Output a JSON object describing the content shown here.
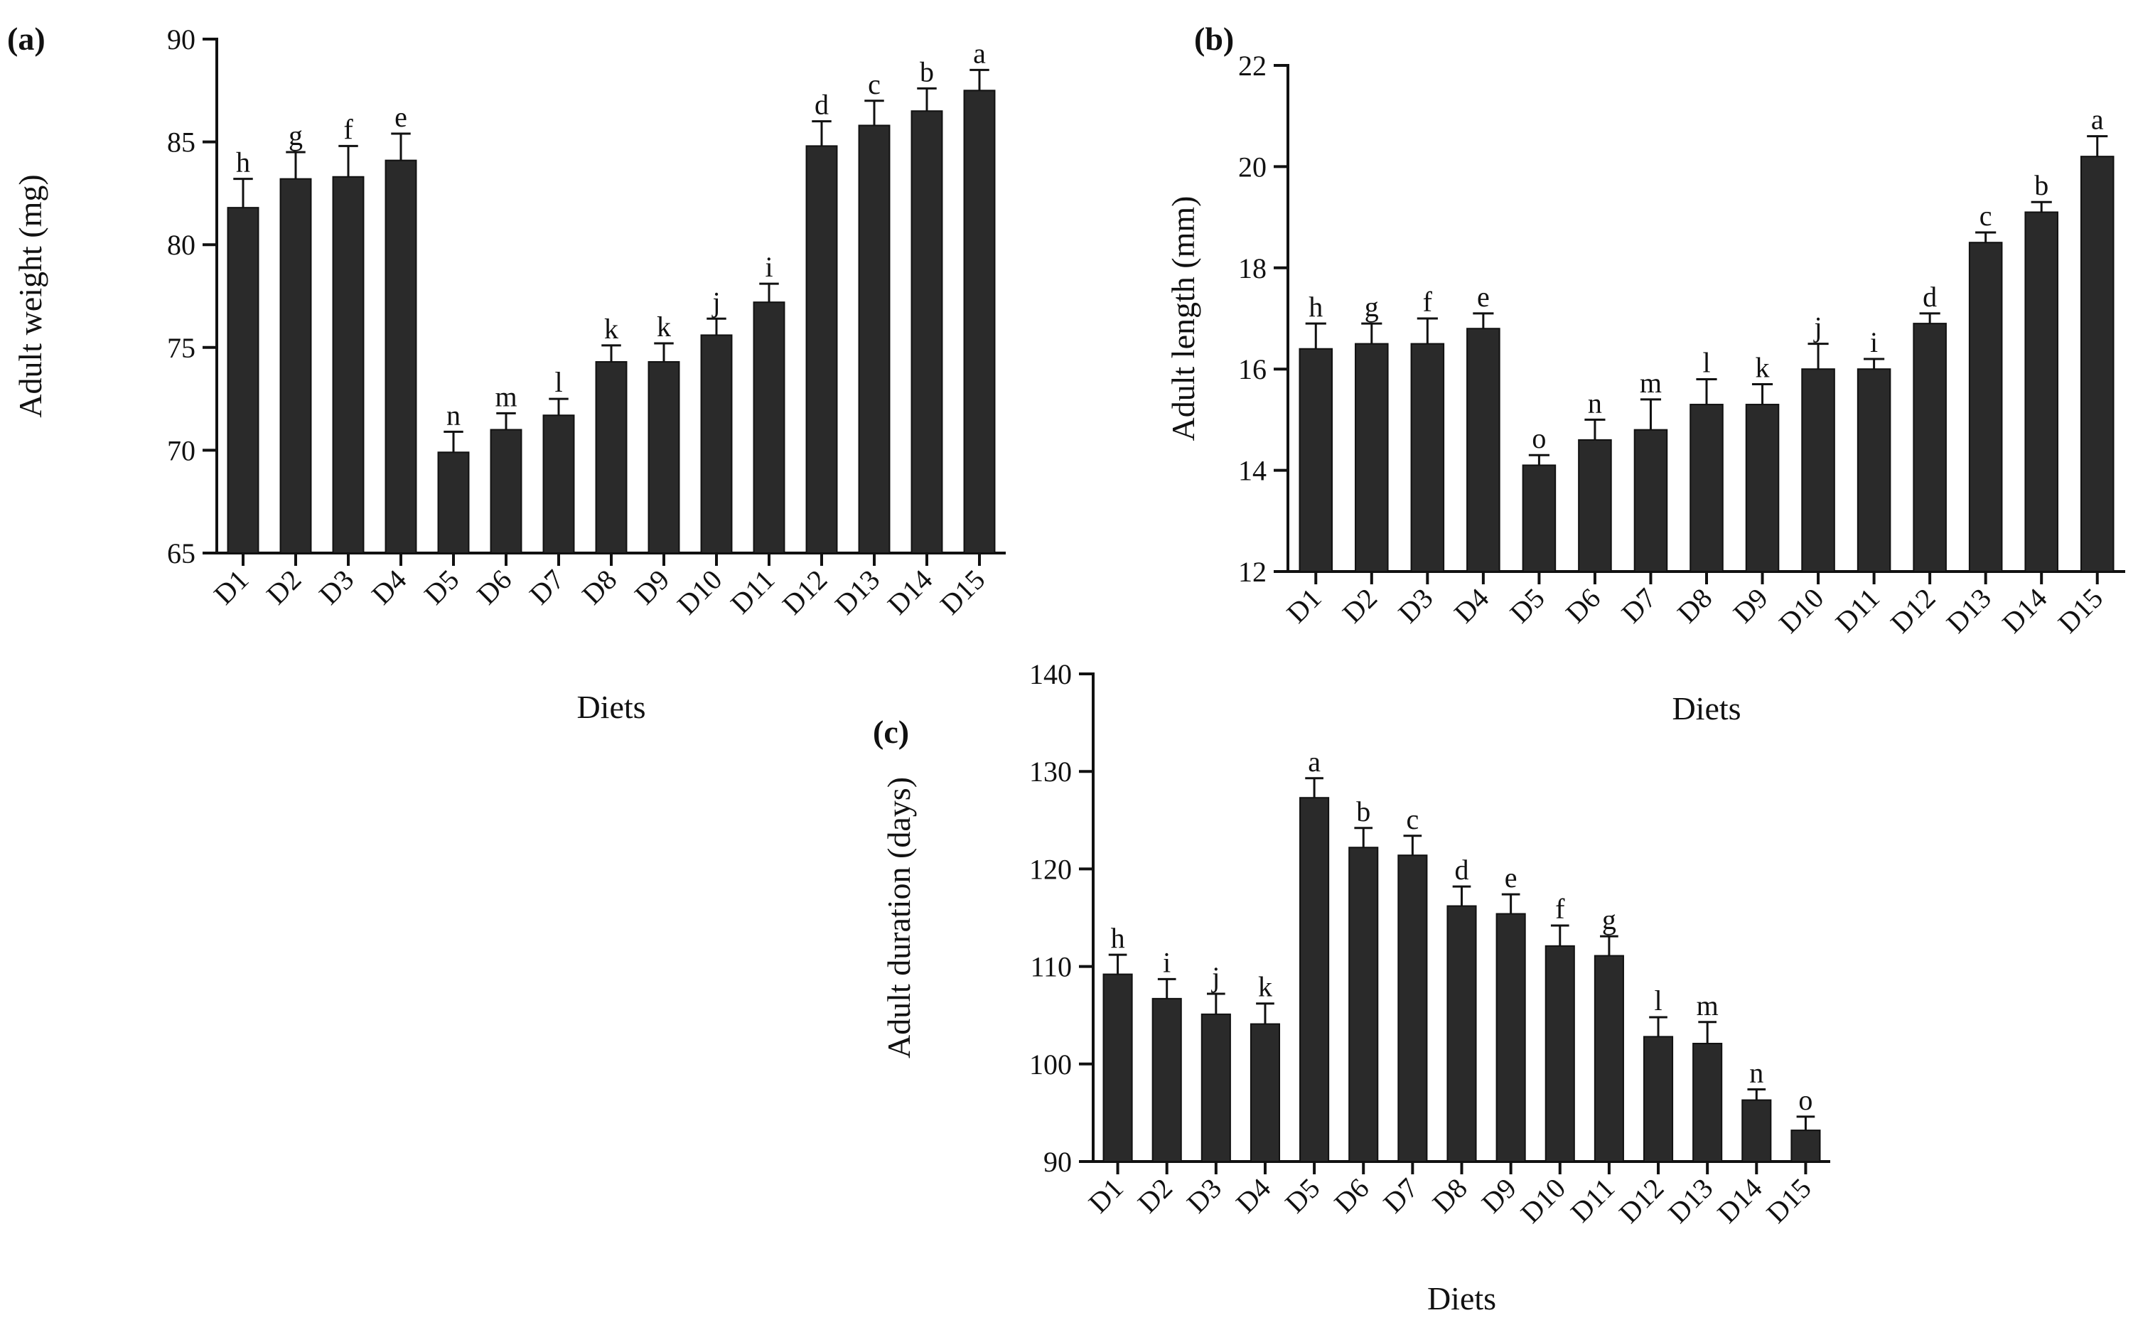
{
  "chart_data": [
    {
      "id": "a",
      "type": "bar",
      "panel_label": "(a)",
      "xlabel": "Diets",
      "ylabel": "Adult weight (mg)",
      "ylim": [
        65,
        90
      ],
      "yticks": [
        65,
        70,
        75,
        80,
        85,
        90
      ],
      "categories": [
        "D1",
        "D2",
        "D3",
        "D4",
        "D5",
        "D6",
        "D7",
        "D8",
        "D9",
        "D10",
        "D11",
        "D12",
        "D13",
        "D14",
        "D15"
      ],
      "values": [
        81.8,
        83.2,
        83.3,
        84.1,
        69.9,
        71.0,
        71.7,
        74.3,
        74.3,
        75.6,
        77.2,
        84.8,
        85.8,
        86.5,
        87.5
      ],
      "errors": [
        1.4,
        1.3,
        1.5,
        1.3,
        1.0,
        0.8,
        0.8,
        0.8,
        0.9,
        0.8,
        0.9,
        1.2,
        1.2,
        1.1,
        1.0
      ],
      "significance": [
        "h",
        "g",
        "f",
        "e",
        "n",
        "m",
        "l",
        "k",
        "k",
        "j",
        "i",
        "d",
        "c",
        "b",
        "a"
      ]
    },
    {
      "id": "b",
      "type": "bar",
      "panel_label": "(b)",
      "xlabel": "Diets",
      "ylabel": "Adult length (mm)",
      "ylim": [
        12,
        22
      ],
      "yticks": [
        12,
        14,
        16,
        18,
        20,
        22
      ],
      "categories": [
        "D1",
        "D2",
        "D3",
        "D4",
        "D5",
        "D6",
        "D7",
        "D8",
        "D9",
        "D10",
        "D11",
        "D12",
        "D13",
        "D14",
        "D15"
      ],
      "values": [
        16.4,
        16.5,
        16.5,
        16.8,
        14.1,
        14.6,
        14.8,
        15.3,
        15.3,
        16.0,
        16.0,
        16.9,
        18.5,
        19.1,
        20.2
      ],
      "errors": [
        0.5,
        0.4,
        0.5,
        0.3,
        0.2,
        0.4,
        0.6,
        0.5,
        0.4,
        0.5,
        0.2,
        0.2,
        0.2,
        0.2,
        0.4
      ],
      "significance": [
        "h",
        "g",
        "f",
        "e",
        "o",
        "n",
        "m",
        "l",
        "k",
        "j",
        "i",
        "d",
        "c",
        "b",
        "a"
      ]
    },
    {
      "id": "c",
      "type": "bar",
      "panel_label": "(c)",
      "xlabel": "Diets",
      "ylabel": "Adult duration (days)",
      "ylim": [
        90,
        140
      ],
      "yticks": [
        90,
        100,
        110,
        120,
        130,
        140
      ],
      "categories": [
        "D1",
        "D2",
        "D3",
        "D4",
        "D5",
        "D6",
        "D7",
        "D8",
        "D9",
        "D10",
        "D11",
        "D12",
        "D13",
        "D14",
        "D15"
      ],
      "values": [
        109.2,
        106.7,
        105.1,
        104.1,
        127.3,
        122.2,
        121.4,
        116.2,
        115.4,
        112.1,
        111.1,
        102.8,
        102.1,
        96.3,
        93.2
      ],
      "errors": [
        2.0,
        2.0,
        2.1,
        2.1,
        2.0,
        2.0,
        2.0,
        2.0,
        2.0,
        2.1,
        2.0,
        2.0,
        2.2,
        1.1,
        1.4
      ],
      "significance": [
        "h",
        "i",
        "j",
        "k",
        "a",
        "b",
        "c",
        "d",
        "e",
        "f",
        "g",
        "l",
        "m",
        "n",
        "o"
      ]
    }
  ]
}
